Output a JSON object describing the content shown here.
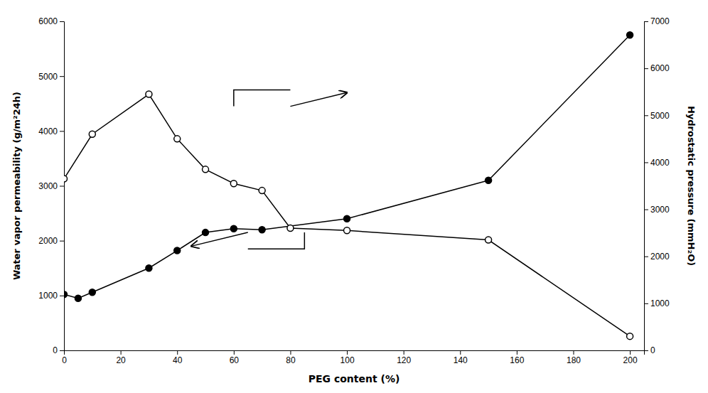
{
  "chart_data": {
    "type": "line",
    "xlabel": "PEG content (%)",
    "ylabel": "Water vapor permeability (g/m²24h)",
    "y2label": "Hydrostatic pressure (mmH₂O)",
    "xlim": [
      0,
      205
    ],
    "ylim": [
      0,
      6000
    ],
    "y2lim": [
      0,
      7000
    ],
    "xticks": [
      0,
      20,
      40,
      60,
      80,
      100,
      120,
      140,
      160,
      180,
      200
    ],
    "yticks": [
      0,
      1000,
      2000,
      3000,
      4000,
      5000,
      6000
    ],
    "y2ticks": [
      0,
      1000,
      2000,
      3000,
      4000,
      5000,
      6000,
      7000
    ],
    "grid": false,
    "series": [
      {
        "color": "black",
        "marker": "circle",
        "line_style": "solid",
        "x": [
          0,
          5,
          10,
          30,
          40,
          50,
          60,
          70,
          100,
          150,
          200
        ],
        "values": [
          1020,
          950,
          1060,
          1500,
          1820,
          2150,
          2220,
          2200,
          2400,
          3100,
          5750
        ]
      },
      {
        "color": "black",
        "marker": "open-circle",
        "line_style": "solid",
        "axis": "y2",
        "x": [
          0,
          10,
          30,
          40,
          50,
          60,
          70,
          80,
          100,
          150,
          200
        ],
        "values": [
          3650,
          4600,
          5450,
          4500,
          3850,
          3550,
          3400,
          2600,
          2550,
          2350,
          300
        ]
      }
    ],
    "annotations": [
      {
        "type": "bracket",
        "x": [
          60,
          60,
          80
        ],
        "y": [
          4450,
          4750,
          4750
        ]
      },
      {
        "type": "arrow",
        "x": [
          80,
          100
        ],
        "y": [
          4450,
          4700
        ]
      },
      {
        "type": "bracket",
        "x": [
          85,
          85,
          65
        ],
        "y": [
          2150,
          1850,
          1850
        ]
      },
      {
        "type": "arrow",
        "x": [
          65,
          45
        ],
        "y": [
          2150,
          1900
        ]
      }
    ]
  }
}
